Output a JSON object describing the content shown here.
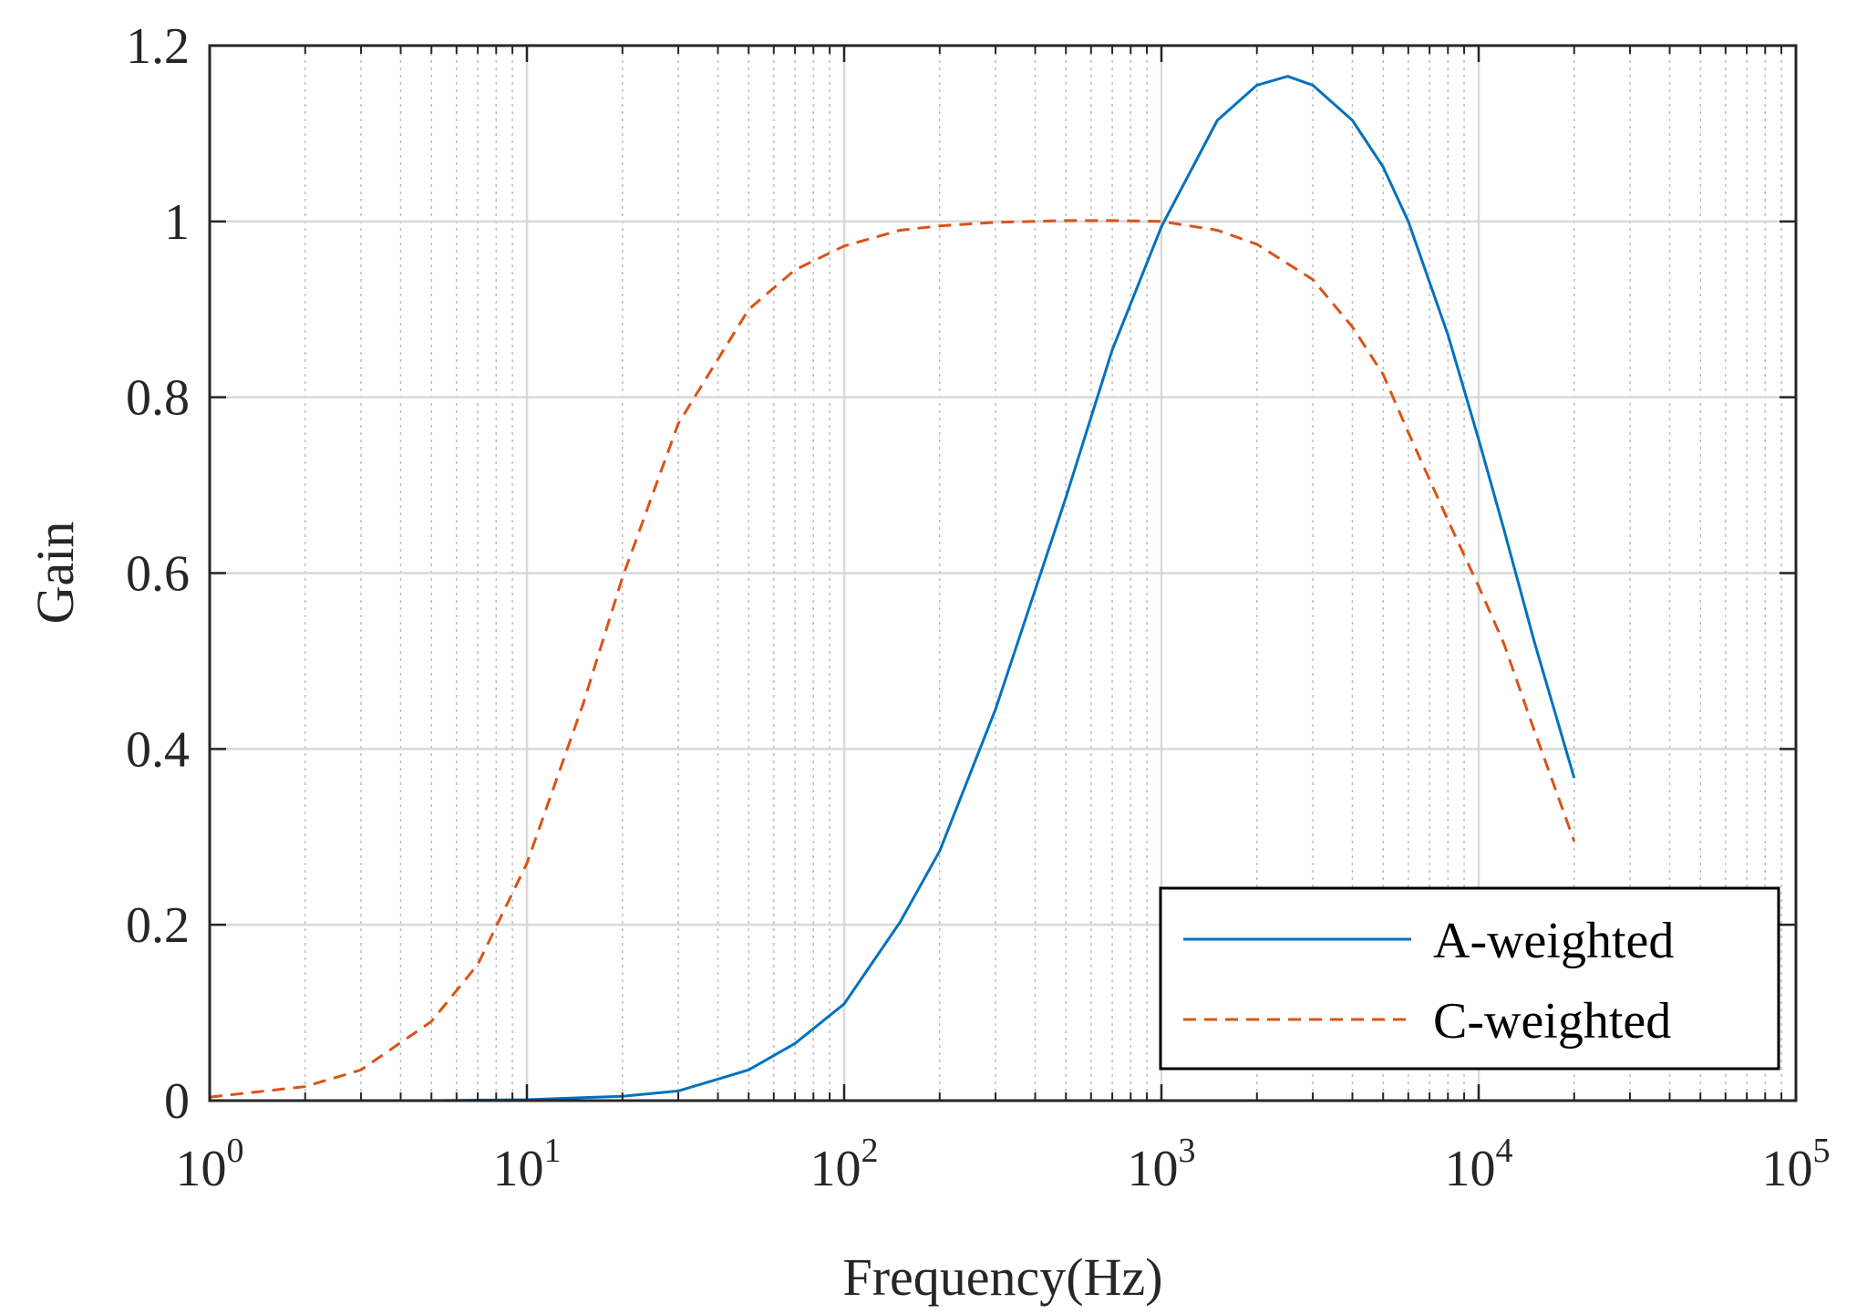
{
  "chart_data": {
    "type": "line",
    "title": "",
    "xlabel": "Frequency(Hz)",
    "ylabel": "Gain",
    "xscale": "log",
    "xlim": [
      1,
      100000
    ],
    "ylim": [
      0,
      1.2
    ],
    "grid": true,
    "legend_position": "bottom-right",
    "x_ticks": [
      {
        "base": "10",
        "exp": "0"
      },
      {
        "base": "10",
        "exp": "1"
      },
      {
        "base": "10",
        "exp": "2"
      },
      {
        "base": "10",
        "exp": "3"
      },
      {
        "base": "10",
        "exp": "4"
      },
      {
        "base": "10",
        "exp": "5"
      }
    ],
    "y_ticks": [
      "0",
      "0.2",
      "0.4",
      "0.6",
      "0.8",
      "1",
      "1.2"
    ],
    "series": [
      {
        "name": "A-weighted",
        "style": "solid",
        "color": "#0072BD",
        "x": [
          1,
          2,
          5,
          10,
          20,
          30,
          50,
          70,
          100,
          150,
          200,
          300,
          500,
          700,
          1000,
          1500,
          2000,
          2500,
          3000,
          4000,
          5000,
          6000,
          8000,
          10000,
          12000,
          15000,
          20000
        ],
        "y": [
          0.0,
          0.0,
          0.0,
          0.001,
          0.005,
          0.011,
          0.035,
          0.065,
          0.11,
          0.203,
          0.284,
          0.445,
          0.686,
          0.854,
          0.994,
          1.115,
          1.155,
          1.165,
          1.155,
          1.115,
          1.062,
          1.0,
          0.871,
          0.752,
          0.65,
          0.521,
          0.367
        ]
      },
      {
        "name": "C-weighted",
        "style": "dashed",
        "color": "#D95319",
        "x": [
          1,
          2,
          3,
          5,
          7,
          10,
          15,
          20,
          30,
          50,
          70,
          100,
          150,
          200,
          300,
          500,
          700,
          1000,
          1500,
          2000,
          3000,
          4000,
          5000,
          6000,
          8000,
          10000,
          12000,
          15000,
          20000
        ],
        "y": [
          0.004,
          0.016,
          0.035,
          0.09,
          0.155,
          0.27,
          0.45,
          0.595,
          0.77,
          0.9,
          0.945,
          0.972,
          0.99,
          0.995,
          0.999,
          1.001,
          1.001,
          1.0,
          0.99,
          0.974,
          0.934,
          0.88,
          0.826,
          0.76,
          0.66,
          0.585,
          0.52,
          0.42,
          0.295
        ]
      }
    ]
  }
}
